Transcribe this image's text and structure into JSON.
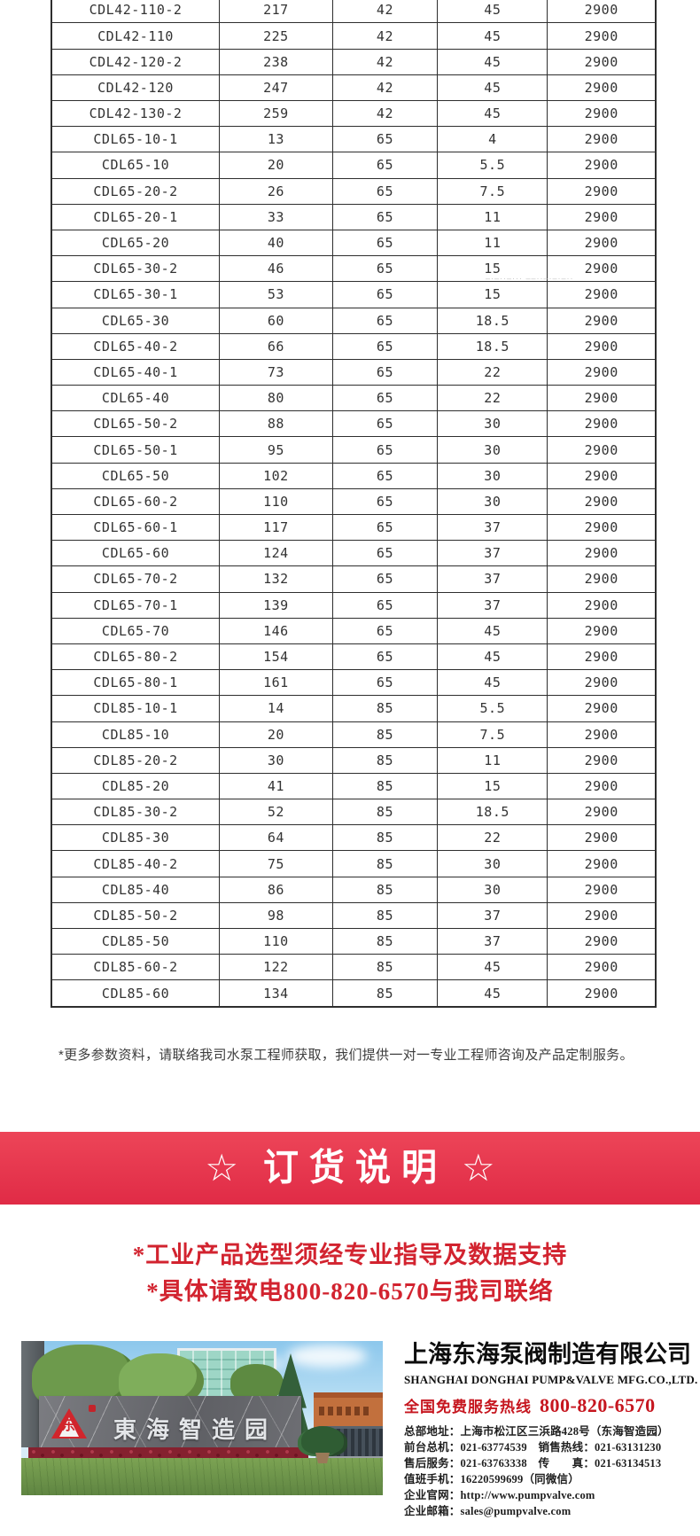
{
  "table": {
    "rows": [
      [
        "CDL42-110-2",
        "217",
        "42",
        "45",
        "2900"
      ],
      [
        "CDL42-110",
        "225",
        "42",
        "45",
        "2900"
      ],
      [
        "CDL42-120-2",
        "238",
        "42",
        "45",
        "2900"
      ],
      [
        "CDL42-120",
        "247",
        "42",
        "45",
        "2900"
      ],
      [
        "CDL42-130-2",
        "259",
        "42",
        "45",
        "2900"
      ],
      [
        "CDL65-10-1",
        "13",
        "65",
        "4",
        "2900"
      ],
      [
        "CDL65-10",
        "20",
        "65",
        "5.5",
        "2900"
      ],
      [
        "CDL65-20-2",
        "26",
        "65",
        "7.5",
        "2900"
      ],
      [
        "CDL65-20-1",
        "33",
        "65",
        "11",
        "2900"
      ],
      [
        "CDL65-20",
        "40",
        "65",
        "11",
        "2900"
      ],
      [
        "CDL65-30-2",
        "46",
        "65",
        "15",
        "2900"
      ],
      [
        "CDL65-30-1",
        "53",
        "65",
        "15",
        "2900"
      ],
      [
        "CDL65-30",
        "60",
        "65",
        "18.5",
        "2900"
      ],
      [
        "CDL65-40-2",
        "66",
        "65",
        "18.5",
        "2900"
      ],
      [
        "CDL65-40-1",
        "73",
        "65",
        "22",
        "2900"
      ],
      [
        "CDL65-40",
        "80",
        "65",
        "22",
        "2900"
      ],
      [
        "CDL65-50-2",
        "88",
        "65",
        "30",
        "2900"
      ],
      [
        "CDL65-50-1",
        "95",
        "65",
        "30",
        "2900"
      ],
      [
        "CDL65-50",
        "102",
        "65",
        "30",
        "2900"
      ],
      [
        "CDL65-60-2",
        "110",
        "65",
        "30",
        "2900"
      ],
      [
        "CDL65-60-1",
        "117",
        "65",
        "37",
        "2900"
      ],
      [
        "CDL65-60",
        "124",
        "65",
        "37",
        "2900"
      ],
      [
        "CDL65-70-2",
        "132",
        "65",
        "37",
        "2900"
      ],
      [
        "CDL65-70-1",
        "139",
        "65",
        "37",
        "2900"
      ],
      [
        "CDL65-70",
        "146",
        "65",
        "45",
        "2900"
      ],
      [
        "CDL65-80-2",
        "154",
        "65",
        "45",
        "2900"
      ],
      [
        "CDL65-80-1",
        "161",
        "65",
        "45",
        "2900"
      ],
      [
        "CDL85-10-1",
        "14",
        "85",
        "5.5",
        "2900"
      ],
      [
        "CDL85-10",
        "20",
        "85",
        "7.5",
        "2900"
      ],
      [
        "CDL85-20-2",
        "30",
        "85",
        "11",
        "2900"
      ],
      [
        "CDL85-20",
        "41",
        "85",
        "15",
        "2900"
      ],
      [
        "CDL85-30-2",
        "52",
        "85",
        "18.5",
        "2900"
      ],
      [
        "CDL85-30",
        "64",
        "85",
        "22",
        "2900"
      ],
      [
        "CDL85-40-2",
        "75",
        "85",
        "30",
        "2900"
      ],
      [
        "CDL85-40",
        "86",
        "85",
        "30",
        "2900"
      ],
      [
        "CDL85-50-2",
        "98",
        "85",
        "37",
        "2900"
      ],
      [
        "CDL85-50",
        "110",
        "85",
        "37",
        "2900"
      ],
      [
        "CDL85-60-2",
        "122",
        "85",
        "45",
        "2900"
      ],
      [
        "CDL85-60",
        "134",
        "85",
        "45",
        "2900"
      ]
    ]
  },
  "watermark_marks": "–·–··–··· ––··–·–·–··",
  "footnote": "*更多参数资料，请联络我司水泵工程师获取，我们提供一对一专业工程师咨询及产品定制服务。",
  "banner": {
    "left_star": "☆",
    "title": "订货说明",
    "right_star": "☆",
    "background_color": "#e42f49"
  },
  "notice": {
    "line1": "*工业产品选型须经专业指导及数据支持",
    "line2": "*具体请致电800-820-6570与我司联络",
    "text_color": "#d2232f"
  },
  "photo": {
    "wall_text": "東海智造园",
    "logo_char": "东"
  },
  "company": {
    "name_cn": "上海东海泵阀制造有限公司",
    "name_en": "SHANGHAI DONGHAI PUMP&VALVE MFG.CO.,LTD.",
    "hotline_label": "全国免费服务热线",
    "hotline_number": "800-820-6570",
    "hotline_color": "#c6161f",
    "details": [
      "总部地址：上海市松江区三浜路428号（东海智造园）",
      "前台总机：021-63774539　销售热线：021-63131230",
      "售后服务：021-63763338　传　　真：021-63134513",
      "值班手机：16220599699（同微信）",
      "企业官网：http://www.pumpvalve.com",
      "企业邮箱：sales@pumpvalve.com"
    ]
  }
}
